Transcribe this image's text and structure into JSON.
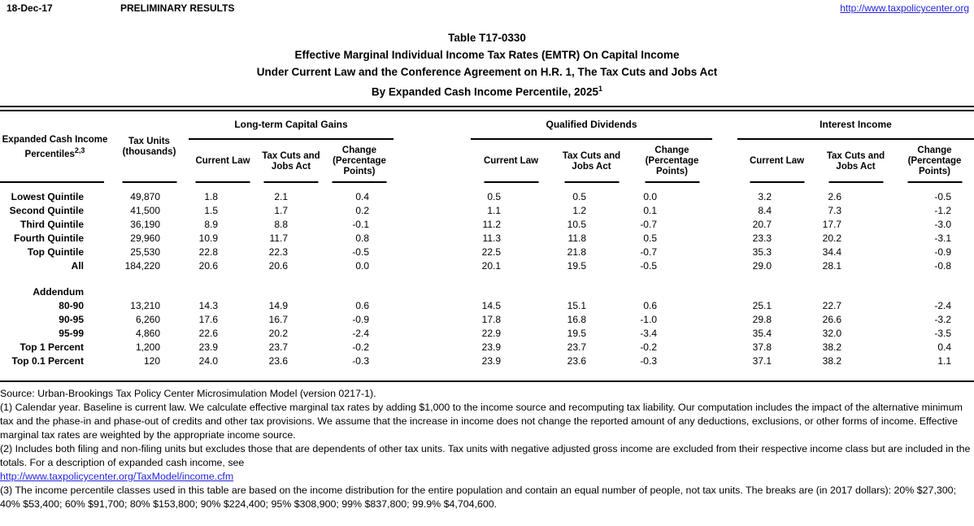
{
  "page_header": {
    "date": "18-Dec-17",
    "status": "PRELIMINARY RESULTS",
    "site_link": "http://www.taxpolicycenter.org"
  },
  "title": {
    "line1": "Table T17-0330",
    "line2": "Effective Marginal Individual Income Tax Rates (EMTR) On Capital Income",
    "line3": "Under Current Law and the Conference Agreement on H.R. 1, The Tax Cuts and Jobs Act",
    "line4": "By Expanded Cash Income Percentile, 2025",
    "line4_sup": "1"
  },
  "colors": {
    "link_blue": "#2424DF",
    "text": "#000000",
    "rule": "#000000"
  },
  "table": {
    "row_header": {
      "label": "Expanded Cash Income Percentiles",
      "sup": "2,3"
    },
    "tax_units_header": "Tax Units (thousands)",
    "groups": {
      "ltcg": "Long-term Capital Gains",
      "dividends": "Qualified Dividends",
      "interest": "Interest Income"
    },
    "sub_headers": {
      "current_law": "Current Law",
      "tcja": "Tax Cuts and Jobs Act",
      "change": "Change (Percentage Points)"
    },
    "rows": [
      {
        "label": "Lowest Quintile",
        "tax_units": "49,870",
        "ltcg": [
          "1.8",
          "2.1",
          "0.4"
        ],
        "dividends": [
          "0.5",
          "0.5",
          "0.0"
        ],
        "interest": [
          "3.2",
          "2.6",
          "-0.5"
        ]
      },
      {
        "label": "Second Quintile",
        "tax_units": "41,500",
        "ltcg": [
          "1.5",
          "1.7",
          "0.2"
        ],
        "dividends": [
          "1.1",
          "1.2",
          "0.1"
        ],
        "interest": [
          "8.4",
          "7.3",
          "-1.2"
        ]
      },
      {
        "label": "Third Quintile",
        "tax_units": "36,190",
        "ltcg": [
          "8.9",
          "8.8",
          "-0.1"
        ],
        "dividends": [
          "11.2",
          "10.5",
          "-0.7"
        ],
        "interest": [
          "20.7",
          "17.7",
          "-3.0"
        ]
      },
      {
        "label": "Fourth Quintile",
        "tax_units": "29,960",
        "ltcg": [
          "10.9",
          "11.7",
          "0.8"
        ],
        "dividends": [
          "11.3",
          "11.8",
          "0.5"
        ],
        "interest": [
          "23.3",
          "20.2",
          "-3.1"
        ]
      },
      {
        "label": "Top Quintile",
        "tax_units": "25,530",
        "ltcg": [
          "22.8",
          "22.3",
          "-0.5"
        ],
        "dividends": [
          "22.5",
          "21.8",
          "-0.7"
        ],
        "interest": [
          "35.3",
          "34.4",
          "-0.9"
        ]
      },
      {
        "label": "All",
        "tax_units": "184,220",
        "ltcg": [
          "20.6",
          "20.6",
          "0.0"
        ],
        "dividends": [
          "20.1",
          "19.5",
          "-0.5"
        ],
        "interest": [
          "29.0",
          "28.1",
          "-0.8"
        ]
      }
    ],
    "section_label": "Addendum",
    "addendum_rows": [
      {
        "label": "80-90",
        "tax_units": "13,210",
        "ltcg": [
          "14.3",
          "14.9",
          "0.6"
        ],
        "dividends": [
          "14.5",
          "15.1",
          "0.6"
        ],
        "interest": [
          "25.1",
          "22.7",
          "-2.4"
        ]
      },
      {
        "label": "90-95",
        "tax_units": "6,260",
        "ltcg": [
          "17.6",
          "16.7",
          "-0.9"
        ],
        "dividends": [
          "17.8",
          "16.8",
          "-1.0"
        ],
        "interest": [
          "29.8",
          "26.6",
          "-3.2"
        ]
      },
      {
        "label": "95-99",
        "tax_units": "4,860",
        "ltcg": [
          "22.6",
          "20.2",
          "-2.4"
        ],
        "dividends": [
          "22.9",
          "19.5",
          "-3.4"
        ],
        "interest": [
          "35.4",
          "32.0",
          "-3.5"
        ]
      },
      {
        "label": "Top 1 Percent",
        "tax_units": "1,200",
        "ltcg": [
          "23.9",
          "23.7",
          "-0.2"
        ],
        "dividends": [
          "23.9",
          "23.7",
          "-0.2"
        ],
        "interest": [
          "37.8",
          "38.2",
          "0.4"
        ]
      },
      {
        "label": "Top 0.1 Percent",
        "tax_units": "120",
        "ltcg": [
          "24.0",
          "23.6",
          "-0.3"
        ],
        "dividends": [
          "23.9",
          "23.6",
          "-0.3"
        ],
        "interest": [
          "37.1",
          "38.2",
          "1.1"
        ]
      }
    ]
  },
  "footnotes": {
    "source": "Source: Urban-Brookings Tax Policy Center Microsimulation Model (version 0217-1).",
    "note1": "(1) Calendar year. Baseline is current law. We calculate effective marginal tax rates by adding $1,000 to the income source and recomputing tax liability. Our computation includes the impact of the alternative minimum tax and the phase-in and phase-out of credits and other tax provisions. We assume that the increase in income does not change the reported amount of any deductions, exclusions, or other forms of income. Effective marginal tax rates are weighted by the appropriate income source.",
    "note2": "(2) Includes both filing and non-filing units but excludes those that are dependents of other tax units. Tax units with negative adjusted gross income are excluded from their respective income class but are included in the totals. For a description of expanded cash income, see",
    "note2_link": "http://www.taxpolicycenter.org/TaxModel/income.cfm",
    "note3": "(3) The income percentile classes used in this table are based on the income distribution for the entire population and contain an equal number of people, not tax units. The breaks are (in 2017 dollars): 20% $27,300; 40% $53,400; 60% $91,700; 80% $153,800; 90% $224,400; 95% $308,900; 99% $837,800; 99.9% $4,704,600."
  }
}
